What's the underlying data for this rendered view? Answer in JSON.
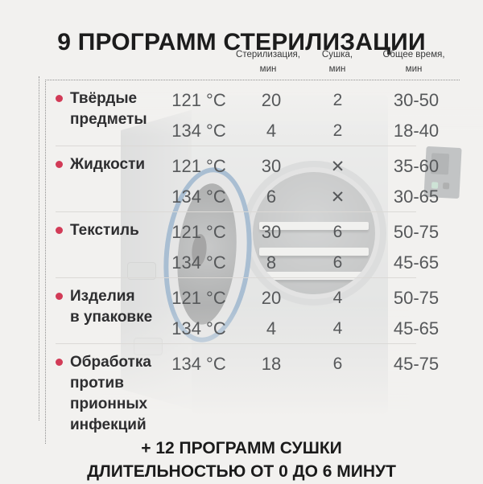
{
  "title": "9 ПРОГРАММ СТЕРИЛИЗАЦИИ",
  "columns": [
    {
      "line1": "Стерилизация,",
      "line2": "мин"
    },
    {
      "line1": "Сушка,",
      "line2": "мин"
    },
    {
      "line1": "Общее время,",
      "line2": "мин"
    }
  ],
  "table": {
    "rows": [
      {
        "label": "Твёрдые предметы",
        "label_lines": [
          "Твёрдые",
          "предметы"
        ],
        "entries": [
          {
            "temp": "121 °C",
            "ster": "20",
            "dry": "2",
            "total": "30-50"
          },
          {
            "temp": "134 °C",
            "ster": "4",
            "dry": "2",
            "total": "18-40"
          }
        ]
      },
      {
        "label": "Жидкости",
        "label_lines": [
          "Жидкости"
        ],
        "entries": [
          {
            "temp": "121 °C",
            "ster": "30",
            "dry": "✕",
            "total": "35-60"
          },
          {
            "temp": "134 °C",
            "ster": "6",
            "dry": "✕",
            "total": "30-65"
          }
        ]
      },
      {
        "label": "Текстиль",
        "label_lines": [
          "Текстиль"
        ],
        "entries": [
          {
            "temp": "121 °C",
            "ster": "30",
            "dry": "6",
            "total": "50-75"
          },
          {
            "temp": "134 °C",
            "ster": "8",
            "dry": "6",
            "total": "45-65"
          }
        ]
      },
      {
        "label": "Изделия в упаковке",
        "label_lines": [
          "Изделия",
          "в упаковке"
        ],
        "entries": [
          {
            "temp": "121 °C",
            "ster": "20",
            "dry": "4",
            "total": "50-75"
          },
          {
            "temp": "134 °C",
            "ster": "4",
            "dry": "4",
            "total": "45-65"
          }
        ]
      },
      {
        "label": "Обработка против прионных инфекций",
        "label_lines": [
          "Обработка",
          "против",
          "прионных",
          "инфекций"
        ],
        "entries": [
          {
            "temp": "134 °C",
            "ster": "18",
            "dry": "6",
            "total": "45-75"
          }
        ]
      }
    ],
    "no_drying_symbol": "✕"
  },
  "footer": {
    "line1": "+ 12 ПРОГРАММ СУШКИ",
    "line2": "ДЛИТЕЛЬНОСТЬЮ ОТ 0 ДО 6 МИНУТ"
  },
  "colors": {
    "accent_bullet": "#d23b57",
    "gasket_blue": "#4679ab",
    "title_text": "#1c1c1c",
    "value_text": "#56585a",
    "background": "#f2f1ef"
  }
}
